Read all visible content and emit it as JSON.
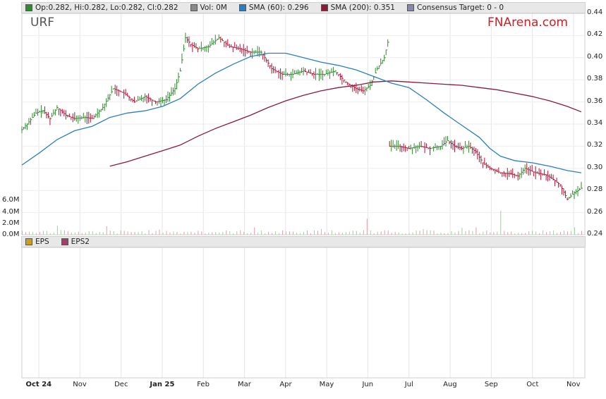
{
  "legend": {
    "ohlc": {
      "label": "Op:0.282, Hi:0.282, Lo:0.282, Cl:0.282",
      "color": "#2e8b2e"
    },
    "vol": {
      "label": "Vol: 0M",
      "color": "#8a8a8a"
    },
    "sma60": {
      "label": "SMA (60): 0.296",
      "color": "#2a7fbf"
    },
    "sma200": {
      "label": "SMA (200): 0.351",
      "color": "#8b1a3a"
    },
    "consensus": {
      "label": "Consensus Target: 0 - 0",
      "color": "#8888aa"
    }
  },
  "lower_legend": {
    "eps": {
      "label": "EPS",
      "color": "#c8a020"
    },
    "eps2": {
      "label": "EPS2",
      "color": "#a0406a"
    }
  },
  "ticker": "URF",
  "brand": "FNArena.com",
  "chart_data": {
    "type": "line",
    "price_axis": {
      "min": 0.24,
      "max": 0.44,
      "ticks": [
        "0.44",
        "0.42",
        "0.40",
        "0.38",
        "0.36",
        "0.34",
        "0.32",
        "0.30",
        "0.28",
        "0.26",
        "0.24"
      ]
    },
    "volume_axis": {
      "ticks": [
        "6.0M",
        "4.0M",
        "2.0M",
        "0.0M"
      ],
      "max": 8
    },
    "x_labels": [
      {
        "label": "Oct 24",
        "bold": true
      },
      {
        "label": "Nov",
        "bold": false
      },
      {
        "label": "Dec",
        "bold": false
      },
      {
        "label": "Jan 25",
        "bold": true
      },
      {
        "label": "Feb",
        "bold": false
      },
      {
        "label": "Mar",
        "bold": false
      },
      {
        "label": "Apr",
        "bold": false
      },
      {
        "label": "May",
        "bold": false
      },
      {
        "label": "Jun",
        "bold": false
      },
      {
        "label": "Jul",
        "bold": false
      },
      {
        "label": "Aug",
        "bold": false
      },
      {
        "label": "Sep",
        "bold": false
      },
      {
        "label": "Oct",
        "bold": false
      },
      {
        "label": "Nov",
        "bold": false
      }
    ],
    "price_path": [
      [
        0,
        0.335
      ],
      [
        3,
        0.34
      ],
      [
        8,
        0.35
      ],
      [
        12,
        0.352
      ],
      [
        16,
        0.345
      ],
      [
        20,
        0.355
      ],
      [
        25,
        0.348
      ],
      [
        30,
        0.345
      ],
      [
        36,
        0.346
      ],
      [
        40,
        0.345
      ],
      [
        46,
        0.355
      ],
      [
        52,
        0.372
      ],
      [
        58,
        0.368
      ],
      [
        64,
        0.36
      ],
      [
        70,
        0.365
      ],
      [
        76,
        0.36
      ],
      [
        82,
        0.362
      ],
      [
        87,
        0.372
      ],
      [
        90,
        0.388
      ],
      [
        93,
        0.418
      ],
      [
        96,
        0.412
      ],
      [
        100,
        0.408
      ],
      [
        106,
        0.41
      ],
      [
        112,
        0.418
      ],
      [
        118,
        0.41
      ],
      [
        124,
        0.408
      ],
      [
        130,
        0.405
      ],
      [
        136,
        0.405
      ],
      [
        142,
        0.39
      ],
      [
        148,
        0.385
      ],
      [
        154,
        0.385
      ],
      [
        160,
        0.388
      ],
      [
        166,
        0.385
      ],
      [
        172,
        0.385
      ],
      [
        178,
        0.388
      ],
      [
        184,
        0.378
      ],
      [
        190,
        0.372
      ],
      [
        194,
        0.37
      ],
      [
        198,
        0.375
      ],
      [
        202,
        0.39
      ],
      [
        206,
        0.4
      ],
      [
        208,
        0.414
      ],
      [
        209,
        0.32
      ],
      [
        214,
        0.32
      ],
      [
        220,
        0.318
      ],
      [
        226,
        0.32
      ],
      [
        232,
        0.318
      ],
      [
        238,
        0.32
      ],
      [
        242,
        0.325
      ],
      [
        246,
        0.32
      ],
      [
        250,
        0.318
      ],
      [
        254,
        0.32
      ],
      [
        258,
        0.315
      ],
      [
        262,
        0.305
      ],
      [
        266,
        0.3
      ],
      [
        272,
        0.296
      ],
      [
        278,
        0.295
      ],
      [
        282,
        0.293
      ],
      [
        286,
        0.3
      ],
      [
        292,
        0.296
      ],
      [
        298,
        0.294
      ],
      [
        302,
        0.29
      ],
      [
        306,
        0.285
      ],
      [
        310,
        0.272
      ],
      [
        314,
        0.278
      ],
      [
        318,
        0.282
      ]
    ],
    "sma60": [
      [
        0,
        0.303
      ],
      [
        10,
        0.314
      ],
      [
        20,
        0.326
      ],
      [
        30,
        0.334
      ],
      [
        40,
        0.338
      ],
      [
        50,
        0.346
      ],
      [
        60,
        0.35
      ],
      [
        70,
        0.352
      ],
      [
        80,
        0.356
      ],
      [
        90,
        0.363
      ],
      [
        100,
        0.376
      ],
      [
        110,
        0.386
      ],
      [
        120,
        0.394
      ],
      [
        130,
        0.401
      ],
      [
        140,
        0.404
      ],
      [
        150,
        0.404
      ],
      [
        160,
        0.4
      ],
      [
        170,
        0.396
      ],
      [
        180,
        0.393
      ],
      [
        190,
        0.389
      ],
      [
        200,
        0.383
      ],
      [
        210,
        0.377
      ],
      [
        220,
        0.373
      ],
      [
        230,
        0.362
      ],
      [
        240,
        0.35
      ],
      [
        250,
        0.339
      ],
      [
        260,
        0.328
      ],
      [
        266,
        0.318
      ],
      [
        272,
        0.311
      ],
      [
        280,
        0.307
      ],
      [
        290,
        0.305
      ],
      [
        300,
        0.302
      ],
      [
        310,
        0.298
      ],
      [
        318,
        0.296
      ]
    ],
    "sma200": [
      [
        50,
        0.302
      ],
      [
        60,
        0.306
      ],
      [
        70,
        0.311
      ],
      [
        80,
        0.316
      ],
      [
        90,
        0.321
      ],
      [
        100,
        0.329
      ],
      [
        110,
        0.336
      ],
      [
        120,
        0.342
      ],
      [
        130,
        0.348
      ],
      [
        140,
        0.355
      ],
      [
        150,
        0.361
      ],
      [
        160,
        0.366
      ],
      [
        170,
        0.37
      ],
      [
        180,
        0.373
      ],
      [
        190,
        0.375
      ],
      [
        200,
        0.378
      ],
      [
        210,
        0.379
      ],
      [
        220,
        0.378
      ],
      [
        230,
        0.377
      ],
      [
        240,
        0.376
      ],
      [
        250,
        0.375
      ],
      [
        260,
        0.373
      ],
      [
        270,
        0.371
      ],
      [
        280,
        0.368
      ],
      [
        290,
        0.365
      ],
      [
        300,
        0.361
      ],
      [
        310,
        0.356
      ],
      [
        318,
        0.351
      ]
    ],
    "volume_spikes": [
      [
        20,
        1.6
      ],
      [
        48,
        1.5
      ],
      [
        78,
        0.9
      ],
      [
        100,
        0.7
      ],
      [
        132,
        1.3
      ],
      [
        170,
        1.0
      ],
      [
        196,
        2.8
      ],
      [
        211,
        2.6
      ],
      [
        228,
        1.0
      ],
      [
        250,
        1.2
      ],
      [
        258,
        1.3
      ],
      [
        272,
        4.2
      ],
      [
        300,
        0.6
      ],
      [
        314,
        1.3
      ]
    ]
  }
}
